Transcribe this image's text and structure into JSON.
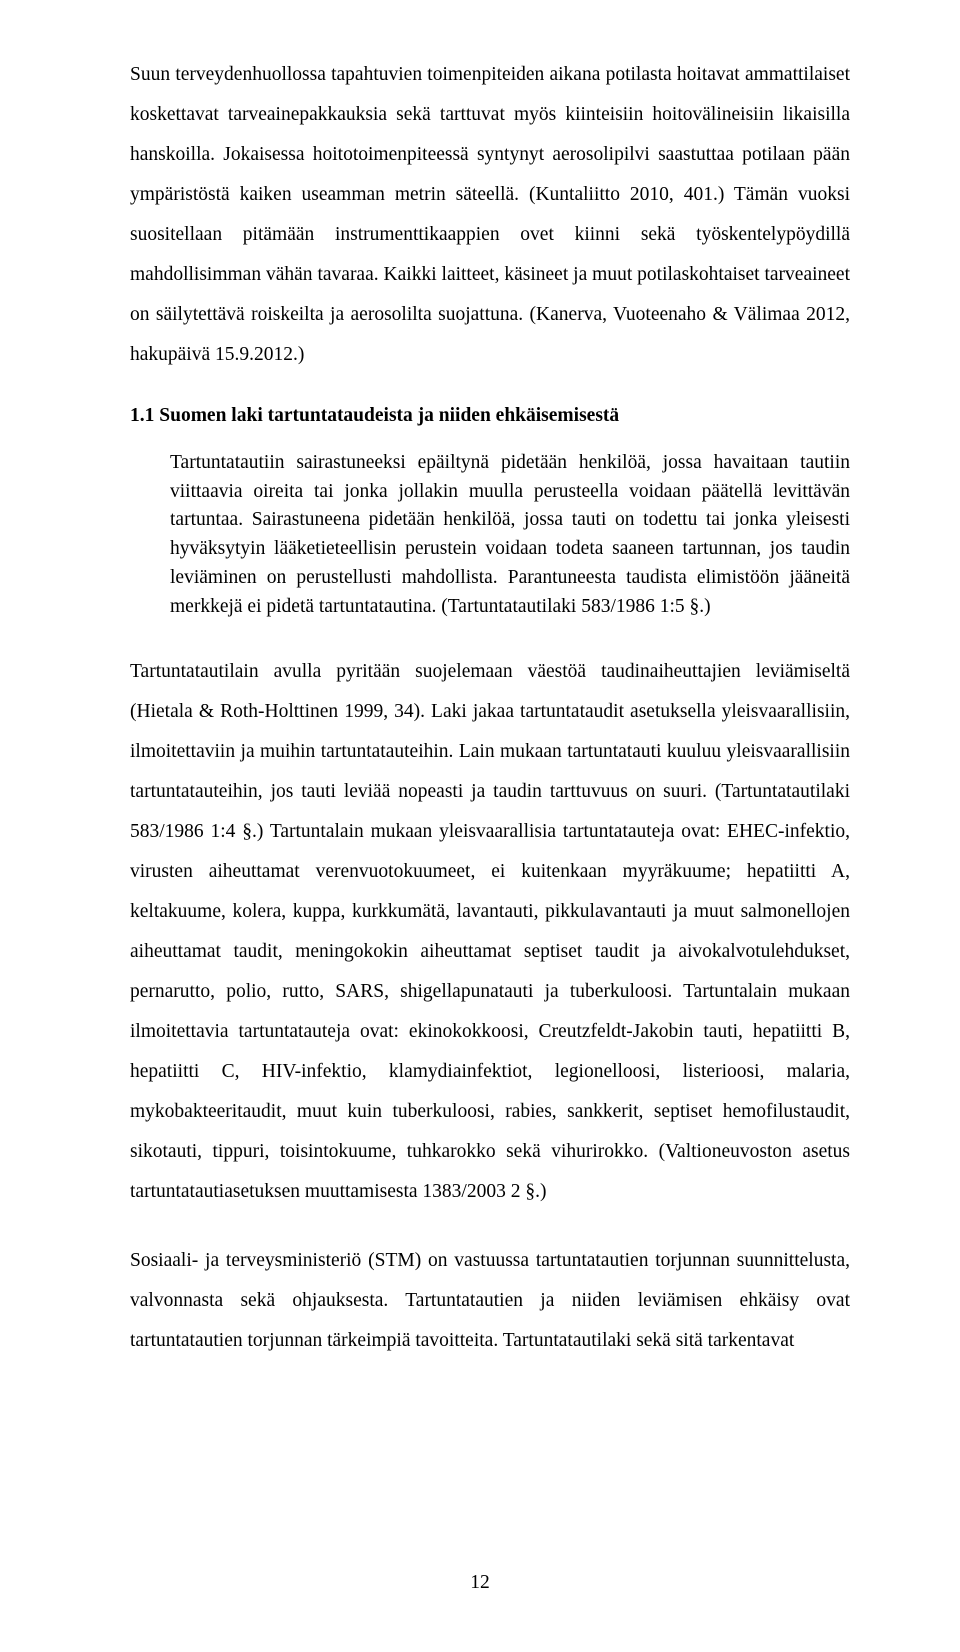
{
  "paragraphs": {
    "p1": "Suun terveydenhuollossa tapahtuvien toimenpiteiden aikana potilasta hoitavat ammattilaiset koskettavat tarveainepakkauksia sekä tarttuvat myös kiinteisiin hoitovälineisiin likaisilla hanskoilla. Jokaisessa hoitotoimenpiteessä syntynyt aerosolipilvi saastuttaa potilaan pään ympäristöstä kaiken useamman metrin säteellä. (Kuntaliitto 2010, 401.) Tämän vuoksi suositellaan pitämään instrumenttikaappien ovet kiinni sekä työskentelypöydillä mahdollisimman vähän tavaraa. Kaikki laitteet, käsineet ja muut potilaskohtaiset tarveaineet on säilytettävä roiskeilta ja aerosolilta suojattuna. (Kanerva, Vuoteenaho & Välimaa 2012, hakupäivä 15.9.2012.)",
    "heading": "1.1 Suomen laki tartuntataudeista ja niiden ehkäisemisestä",
    "bq": "Tartuntatautiin sairastuneeksi epäiltynä pidetään henkilöä, jossa havaitaan tautiin viittaavia oireita tai jonka jollakin muulla perusteella voidaan päätellä levittävän tartuntaa. Sairastuneena pidetään henkilöä, jossa tauti on todettu tai jonka yleisesti hyväksytyin lääketieteellisin perustein voidaan todeta saaneen tartunnan, jos taudin leviäminen on perustellusti mahdollista. Parantuneesta taudista elimistöön jääneitä merkkejä ei pidetä tartuntatautina. (Tartuntatautilaki 583/1986 1:5 §.)",
    "p2": "Tartuntatautilain avulla pyritään suojelemaan väestöä taudinaiheuttajien leviämiseltä (Hietala & Roth-Holttinen 1999, 34). Laki jakaa tartuntataudit asetuksella yleisvaarallisiin, ilmoitettaviin ja muihin tartuntatauteihin. Lain mukaan tartuntatauti kuuluu yleisvaarallisiin tartuntatauteihin, jos tauti leviää nopeasti ja taudin tarttuvuus on suuri. (Tartuntatautilaki 583/1986 1:4 §.) Tartuntalain mukaan yleisvaarallisia tartuntatauteja ovat: EHEC-infektio, virusten aiheuttamat verenvuotokuumeet, ei kuitenkaan myyräkuume; hepatiitti A, keltakuume, kolera, kuppa, kurkkumätä, lavantauti, pikkulavantauti ja muut salmonellojen aiheuttamat taudit, meningokokin aiheuttamat septiset taudit ja aivokalvotulehdukset, pernarutto, polio, rutto, SARS, shigellapunatauti ja tuberkuloosi. Tartuntalain mukaan ilmoitettavia tartuntatauteja ovat: ekinokokkoosi, Creutzfeldt-Jakobin tauti, hepatiitti B, hepatiitti C, HIV-infektio, klamydiainfektiot, legionelloosi, listerioosi, malaria, mykobakteeritaudit, muut kuin tuberkuloosi, rabies, sankkerit, septiset hemofilustaudit, sikotauti, tippuri, toisintokuume, tuhkarokko sekä vihurirokko. (Valtioneuvoston asetus tartuntatautiasetuksen muuttamisesta 1383/2003 2 §.)",
    "p3": "Sosiaali- ja terveysministeriö (STM) on vastuussa tartuntatautien torjunnan suunnittelusta, valvonnasta sekä ohjauksesta. Tartuntatautien ja niiden leviämisen ehkäisy ovat tartuntatautien torjunnan tärkeimpiä tavoitteita. Tartuntatautilaki sekä sitä tarkentavat"
  },
  "page_number": "12"
}
